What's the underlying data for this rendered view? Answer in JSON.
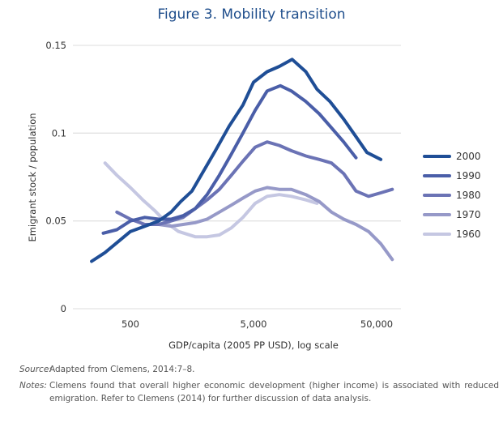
{
  "figure": {
    "source_label": "Source:",
    "source_text": "Adapted from Clemens, 2014:7–8.",
    "notes_label": "Notes:",
    "notes_text": "Clemens found that overall higher economic development (higher income) is associated with reduced emigration. Refer to Clemens (2014) for further discussion of data analysis."
  },
  "chart_data": {
    "type": "line",
    "title": "Figure 3. Mobility transition",
    "xlabel": "GDP/capita (2005 PP USD), log scale",
    "ylabel": "Emigrant stock / population",
    "x_scale": "log",
    "xlim": [
      150,
      80000
    ],
    "ylim": [
      0,
      0.15
    ],
    "x_ticks": [
      500,
      5000,
      50000
    ],
    "x_tick_labels": [
      "500",
      "5,000",
      "50,000"
    ],
    "y_ticks": [
      0,
      0.05,
      0.1,
      0.15
    ],
    "y_tick_labels": [
      "0",
      "0.05",
      "0.1",
      "0.15"
    ],
    "grid": "horizontal",
    "legend_position": "right",
    "series": [
      {
        "name": "2000",
        "color": "#1f4e96",
        "points": [
          [
            242,
            0.027
          ],
          [
            311,
            0.032
          ],
          [
            500,
            0.044
          ],
          [
            655,
            0.047
          ],
          [
            850,
            0.05
          ],
          [
            1070,
            0.055
          ],
          [
            1280,
            0.061
          ],
          [
            1580,
            0.067
          ],
          [
            1950,
            0.078
          ],
          [
            2450,
            0.09
          ],
          [
            3170,
            0.104
          ],
          [
            4100,
            0.116
          ],
          [
            5000,
            0.129
          ],
          [
            6450,
            0.135
          ],
          [
            8100,
            0.138
          ],
          [
            10300,
            0.142
          ],
          [
            13300,
            0.135
          ],
          [
            16400,
            0.125
          ],
          [
            20900,
            0.118
          ],
          [
            27000,
            0.108
          ],
          [
            34000,
            0.098
          ],
          [
            41700,
            0.089
          ],
          [
            54000,
            0.085
          ]
        ]
      },
      {
        "name": "1990",
        "color": "#4a5ea8",
        "points": [
          [
            301,
            0.043
          ],
          [
            388,
            0.045
          ],
          [
            500,
            0.05
          ],
          [
            655,
            0.052
          ],
          [
            850,
            0.051
          ],
          [
            1070,
            0.051
          ],
          [
            1340,
            0.053
          ],
          [
            1680,
            0.057
          ],
          [
            2100,
            0.065
          ],
          [
            2640,
            0.076
          ],
          [
            3300,
            0.088
          ],
          [
            4100,
            0.1
          ],
          [
            5150,
            0.113
          ],
          [
            6450,
            0.124
          ],
          [
            8250,
            0.127
          ],
          [
            10150,
            0.124
          ],
          [
            13300,
            0.118
          ],
          [
            17100,
            0.111
          ],
          [
            21500,
            0.103
          ],
          [
            27000,
            0.095
          ],
          [
            34000,
            0.086
          ]
        ]
      },
      {
        "name": "1980",
        "color": "#6b73b5",
        "points": [
          [
            388,
            0.055
          ],
          [
            500,
            0.051
          ],
          [
            655,
            0.048
          ],
          [
            850,
            0.048
          ],
          [
            1070,
            0.05
          ],
          [
            1340,
            0.052
          ],
          [
            1680,
            0.057
          ],
          [
            2100,
            0.062
          ],
          [
            2640,
            0.068
          ],
          [
            3300,
            0.076
          ],
          [
            4100,
            0.084
          ],
          [
            5150,
            0.092
          ],
          [
            6450,
            0.095
          ],
          [
            8100,
            0.093
          ],
          [
            10150,
            0.09
          ],
          [
            13300,
            0.087
          ],
          [
            17100,
            0.085
          ],
          [
            21500,
            0.083
          ],
          [
            27000,
            0.077
          ],
          [
            34000,
            0.067
          ],
          [
            43000,
            0.064
          ],
          [
            54000,
            0.066
          ],
          [
            67000,
            0.068
          ]
        ]
      },
      {
        "name": "1970",
        "color": "#9699c8",
        "points": [
          [
            630,
            0.048
          ],
          [
            850,
            0.048
          ],
          [
            1070,
            0.047
          ],
          [
            1340,
            0.048
          ],
          [
            1680,
            0.049
          ],
          [
            2100,
            0.051
          ],
          [
            2640,
            0.055
          ],
          [
            3300,
            0.059
          ],
          [
            4100,
            0.063
          ],
          [
            5150,
            0.067
          ],
          [
            6450,
            0.069
          ],
          [
            8100,
            0.068
          ],
          [
            10150,
            0.068
          ],
          [
            13300,
            0.065
          ],
          [
            17100,
            0.061
          ],
          [
            21500,
            0.055
          ],
          [
            27000,
            0.051
          ],
          [
            34000,
            0.048
          ],
          [
            43000,
            0.044
          ],
          [
            54000,
            0.037
          ],
          [
            67000,
            0.028
          ]
        ]
      },
      {
        "name": "1960",
        "color": "#c5c7e2",
        "points": [
          [
            311,
            0.083
          ],
          [
            388,
            0.076
          ],
          [
            500,
            0.069
          ],
          [
            630,
            0.062
          ],
          [
            785,
            0.056
          ],
          [
            980,
            0.049
          ],
          [
            1230,
            0.044
          ],
          [
            1680,
            0.041
          ],
          [
            2100,
            0.041
          ],
          [
            2640,
            0.042
          ],
          [
            3300,
            0.046
          ],
          [
            4100,
            0.052
          ],
          [
            5150,
            0.06
          ],
          [
            6450,
            0.064
          ],
          [
            8100,
            0.065
          ],
          [
            10150,
            0.064
          ],
          [
            13300,
            0.062
          ],
          [
            16400,
            0.06
          ]
        ]
      }
    ]
  }
}
